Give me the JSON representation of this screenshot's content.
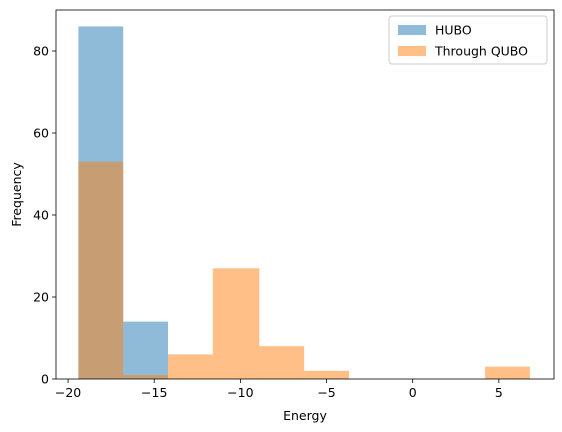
{
  "chart_data": {
    "type": "histogram",
    "xlabel": "Energy",
    "ylabel": "Frequency",
    "xlim": [
      -20.7,
      8.2
    ],
    "ylim": [
      0,
      90
    ],
    "xticks": [
      -20,
      -15,
      -10,
      -5,
      0,
      5
    ],
    "xtick_labels": [
      "−20",
      "−15",
      "−10",
      "−5",
      "0",
      "5"
    ],
    "yticks": [
      0,
      20,
      40,
      60,
      80
    ],
    "ytick_labels": [
      "0",
      "20",
      "40",
      "60",
      "80"
    ],
    "grid": false,
    "legend_position": "top-right",
    "series": [
      {
        "name": "HUBO",
        "color": "#1f77b4",
        "alpha": 0.5,
        "bins": [
          {
            "x0": -19.4,
            "x1": -16.8,
            "count": 86
          },
          {
            "x0": -16.8,
            "x1": -14.2,
            "count": 14
          }
        ]
      },
      {
        "name": "Through QUBO",
        "color": "#ff7f0e",
        "alpha": 0.5,
        "bins": [
          {
            "x0": -19.4,
            "x1": -16.8,
            "count": 53
          },
          {
            "x0": -16.8,
            "x1": -14.2,
            "count": 1
          },
          {
            "x0": -14.2,
            "x1": -11.6,
            "count": 6
          },
          {
            "x0": -11.6,
            "x1": -8.9,
            "count": 27
          },
          {
            "x0": -8.9,
            "x1": -6.3,
            "count": 8
          },
          {
            "x0": -6.3,
            "x1": -3.7,
            "count": 2
          },
          {
            "x0": -3.7,
            "x1": -1.1,
            "count": 0
          },
          {
            "x0": -1.1,
            "x1": 1.6,
            "count": 0
          },
          {
            "x0": 1.6,
            "x1": 4.2,
            "count": 0
          },
          {
            "x0": 4.2,
            "x1": 6.8,
            "count": 3
          }
        ]
      }
    ]
  }
}
